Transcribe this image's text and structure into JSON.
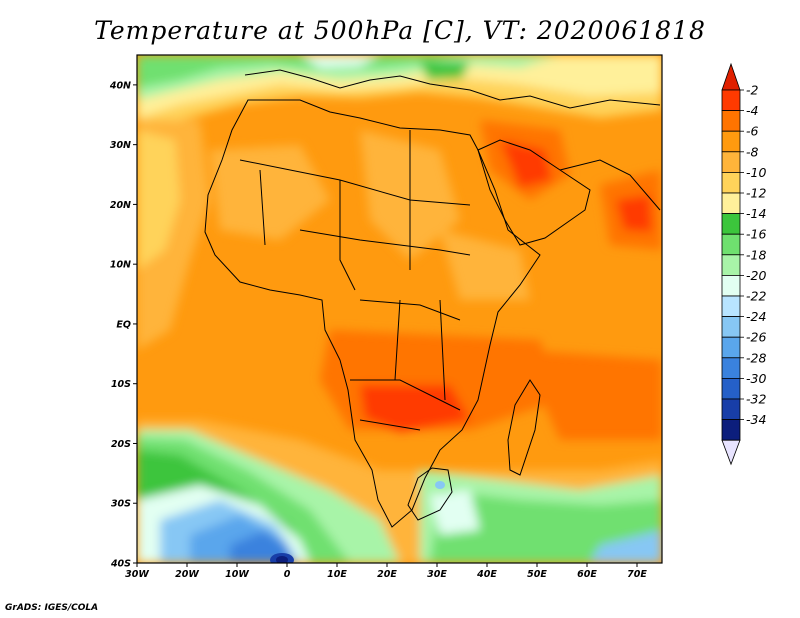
{
  "title": "Temperature at 500hPa [C], VT: 2020061818",
  "credit": "GrADS: IGES/COLA",
  "map": {
    "lon_ticks": [
      "30W",
      "20W",
      "10W",
      "0",
      "10E",
      "20E",
      "30E",
      "40E",
      "50E",
      "60E",
      "70E"
    ],
    "lat_ticks": [
      "40N",
      "30N",
      "20N",
      "10N",
      "EQ",
      "10S",
      "20S",
      "30S",
      "40S"
    ],
    "lon_range": [
      -30,
      75
    ],
    "lat_range": [
      -40,
      45
    ]
  },
  "colorbar": {
    "labels": [
      "-2",
      "-4",
      "-6",
      "-8",
      "-10",
      "-12",
      "-14",
      "-16",
      "-18",
      "-20",
      "-22",
      "-24",
      "-26",
      "-28",
      "-30",
      "-32",
      "-34"
    ],
    "colors": [
      "#ff3a00",
      "#ff7400",
      "#ff9a0f",
      "#ffb43a",
      "#ffd35a",
      "#fff09a",
      "#3cc53c",
      "#6fe06f",
      "#a8f4a8",
      "#e2fff2",
      "#b8e4ff",
      "#87c7f4",
      "#5aa6ec",
      "#3a82de",
      "#2560c8",
      "#183ea8",
      "#0c1e7c"
    ],
    "over_color": "#e02000",
    "under_color": "#e8e4ff"
  }
}
